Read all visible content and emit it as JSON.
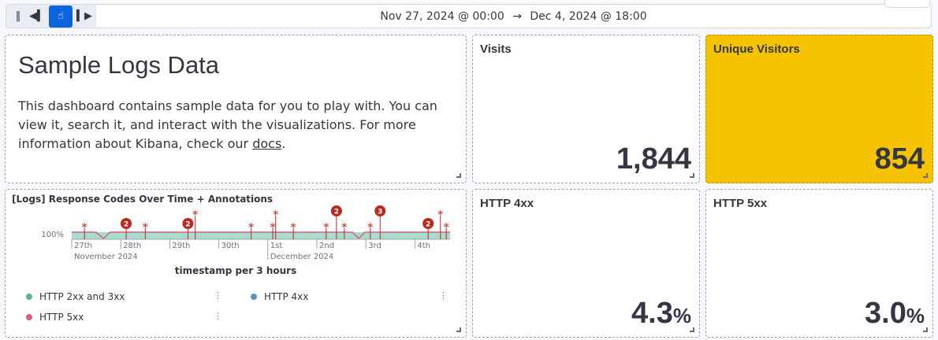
{
  "toolbar": {
    "range_start": "Nov 27, 2024 @ 00:00",
    "arrow": "→",
    "range_end": "Dec 4, 2024 @ 18:00",
    "buttons": [
      "pause-icon",
      "step-back-icon",
      "play-icon",
      "step-forward-icon"
    ]
  },
  "intro": {
    "title": "Sample Logs Data",
    "text": "This dashboard contains sample data for you to play with. You can view it, search it, and interact with the visualizations. For more information about Kibana, check our ",
    "link": "docs",
    "end": "."
  },
  "metrics": [
    {
      "title": "Visits",
      "value": "1,844",
      "unit": ""
    },
    {
      "title": "Unique Visitors",
      "value": "854",
      "unit": "",
      "background": "#f6c300"
    },
    {
      "title": "HTTP 4xx",
      "value": "4.3",
      "unit": "%"
    },
    {
      "title": "HTTP 5xx",
      "value": "3.0",
      "unit": "%"
    }
  ],
  "chart": {
    "title": "[Logs] Response Codes Over Time + Annotations",
    "y_tick": "100%",
    "x_ticks": [
      "27th",
      "28th",
      "29th",
      "30th",
      "1st",
      "2nd",
      "3rd",
      "4th"
    ],
    "x_months": [
      "November 2024",
      "December 2024"
    ],
    "xlabel": "timestamp per 3 hours",
    "legend": [
      {
        "name": "HTTP 2xx and 3xx",
        "color": "#54b399"
      },
      {
        "name": "HTTP 4xx",
        "color": "#6092c0"
      },
      {
        "name": "HTTP 5xx",
        "color": "#d36086"
      }
    ],
    "annotations": [
      {
        "day": 0.26,
        "count": 1
      },
      {
        "day": 1.11,
        "count": 2
      },
      {
        "day": 1.5,
        "count": 1
      },
      {
        "day": 2.37,
        "count": 2
      },
      {
        "day": 2.52,
        "count": 1
      },
      {
        "day": 3.66,
        "count": 1
      },
      {
        "day": 4.1,
        "count": 1
      },
      {
        "day": 4.16,
        "count": 1
      },
      {
        "day": 4.52,
        "count": 1
      },
      {
        "day": 5.19,
        "count": 1
      },
      {
        "day": 5.4,
        "count": 2
      },
      {
        "day": 5.56,
        "count": 1
      },
      {
        "day": 6.09,
        "count": 1
      },
      {
        "day": 6.29,
        "count": 3
      },
      {
        "day": 7.27,
        "count": 2
      },
      {
        "day": 7.52,
        "count": 1
      },
      {
        "day": 7.64,
        "count": 1
      }
    ],
    "annotation_color": "#bd271e"
  }
}
